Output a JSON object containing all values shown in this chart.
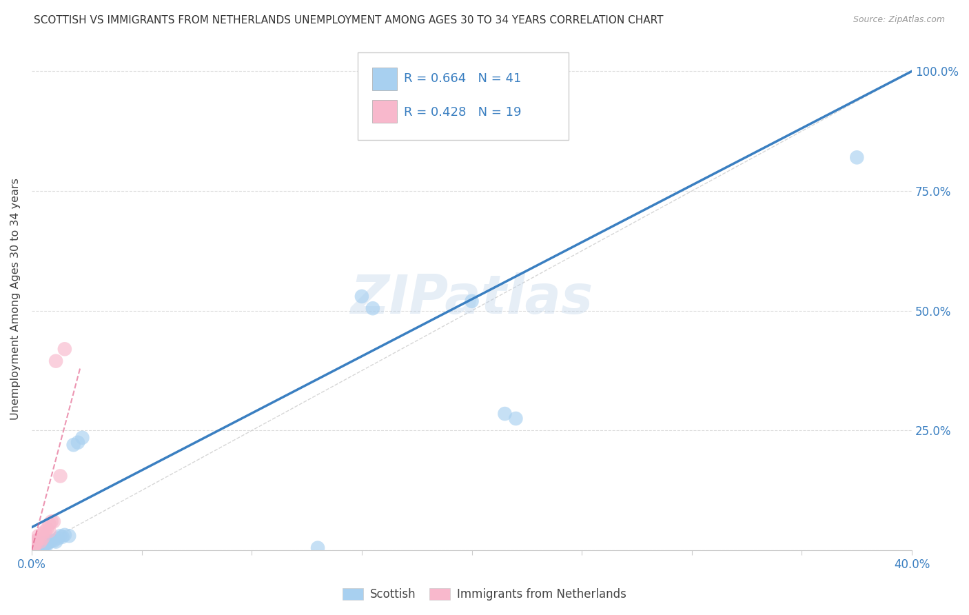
{
  "title": "SCOTTISH VS IMMIGRANTS FROM NETHERLANDS UNEMPLOYMENT AMONG AGES 30 TO 34 YEARS CORRELATION CHART",
  "source": "Source: ZipAtlas.com",
  "ylabel": "Unemployment Among Ages 30 to 34 years",
  "xlim": [
    0.0,
    0.4
  ],
  "ylim": [
    0.0,
    1.05
  ],
  "xtick_positions": [
    0.0,
    0.05,
    0.1,
    0.15,
    0.2,
    0.25,
    0.3,
    0.35,
    0.4
  ],
  "xticklabels": [
    "0.0%",
    "",
    "",
    "",
    "",
    "",
    "",
    "",
    "40.0%"
  ],
  "ytick_positions": [
    0.0,
    0.25,
    0.5,
    0.75,
    1.0
  ],
  "yticklabels_right": [
    "",
    "25.0%",
    "50.0%",
    "75.0%",
    "100.0%"
  ],
  "R_scottish": 0.664,
  "N_scottish": 41,
  "R_netherlands": 0.428,
  "N_netherlands": 19,
  "scottish_color": "#a8d0f0",
  "netherlands_color": "#f8b8cc",
  "scottish_line_color": "#3a7fc1",
  "netherlands_line_color": "#e05080",
  "ref_line_color": "#cccccc",
  "watermark": "ZIPatlas",
  "scottish_x": [
    0.001,
    0.001,
    0.001,
    0.001,
    0.002,
    0.002,
    0.002,
    0.002,
    0.003,
    0.003,
    0.003,
    0.003,
    0.004,
    0.004,
    0.004,
    0.005,
    0.005,
    0.005,
    0.006,
    0.006,
    0.007,
    0.007,
    0.008,
    0.009,
    0.01,
    0.011,
    0.012,
    0.013,
    0.014,
    0.015,
    0.017,
    0.019,
    0.021,
    0.023,
    0.13,
    0.15,
    0.155,
    0.2,
    0.215,
    0.22,
    0.375
  ],
  "scottish_y": [
    0.015,
    0.012,
    0.01,
    0.008,
    0.012,
    0.01,
    0.008,
    0.006,
    0.012,
    0.01,
    0.008,
    0.006,
    0.01,
    0.008,
    0.006,
    0.012,
    0.01,
    0.008,
    0.015,
    0.01,
    0.015,
    0.012,
    0.018,
    0.02,
    0.02,
    0.018,
    0.025,
    0.03,
    0.028,
    0.032,
    0.03,
    0.22,
    0.225,
    0.235,
    0.005,
    0.53,
    0.505,
    0.52,
    0.285,
    0.275,
    0.82
  ],
  "netherlands_x": [
    0.001,
    0.001,
    0.001,
    0.002,
    0.002,
    0.003,
    0.003,
    0.004,
    0.005,
    0.005,
    0.006,
    0.007,
    0.008,
    0.008,
    0.009,
    0.01,
    0.011,
    0.013,
    0.015
  ],
  "netherlands_y": [
    0.008,
    0.012,
    0.006,
    0.015,
    0.02,
    0.022,
    0.03,
    0.018,
    0.035,
    0.025,
    0.04,
    0.045,
    0.055,
    0.04,
    0.06,
    0.06,
    0.395,
    0.155,
    0.42
  ],
  "blue_line_x0": 0.0,
  "blue_line_y0": 0.048,
  "blue_line_x1": 0.4,
  "blue_line_y1": 1.0,
  "pink_line_x0": 0.0,
  "pink_line_y0": 0.0,
  "pink_line_x1": 0.022,
  "pink_line_y1": 0.38
}
